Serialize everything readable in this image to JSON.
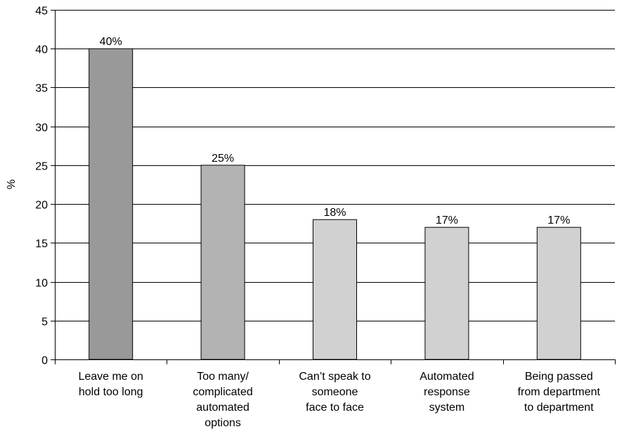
{
  "chart_data": {
    "type": "bar",
    "title": "",
    "xlabel": "",
    "ylabel": "%",
    "ylim": [
      0,
      45
    ],
    "yticks": [
      0,
      5,
      10,
      15,
      20,
      25,
      30,
      35,
      40,
      45
    ],
    "grid": true,
    "legend": "none",
    "categories": [
      [
        "Leave me on",
        "hold too long"
      ],
      [
        "Too many/",
        "complicated",
        "automated",
        "options"
      ],
      [
        "Can’t speak to",
        "someone",
        "face to face"
      ],
      [
        "Automated",
        "response",
        "system"
      ],
      [
        "Being passed",
        "from department",
        "to department"
      ]
    ],
    "values": [
      40,
      25,
      18,
      17,
      17
    ],
    "data_labels": [
      "40%",
      "25%",
      "18%",
      "17%",
      "17%"
    ],
    "bar_colors": [
      "#999999",
      "#b3b3b3",
      "#d1d1d1",
      "#d1d1d1",
      "#d1d1d1"
    ]
  }
}
